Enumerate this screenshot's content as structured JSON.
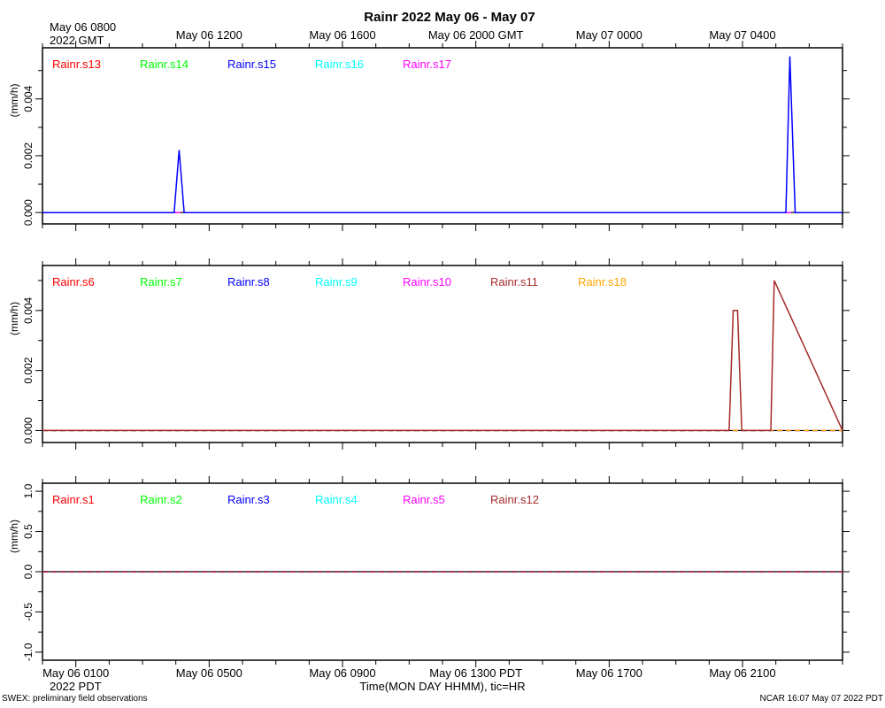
{
  "title": "Rainr 2022 May 06 - May 07",
  "top_axis": {
    "first_label_line1": "May 06 0800",
    "first_label_line2": "2022 GMT",
    "labels": [
      "May 06 1200",
      "May 06 1600",
      "May 06 2000 GMT",
      "May 07 0000",
      "May 07 0400"
    ]
  },
  "bottom_axis": {
    "labels": [
      "May 06 0100",
      "May 06 0500",
      "May 06 0900",
      "May 06 1300 PDT",
      "May 06 1700",
      "May 06 2100"
    ],
    "year_label": "2022 PDT",
    "title": "Time(MON DAY HHMM), tic=HR"
  },
  "footer": {
    "left": "SWEX: preliminary field observations",
    "right": "NCAR 16:07 May 07 2022 PDT"
  },
  "colors": {
    "red": "#ff0000",
    "green": "#00ff00",
    "blue": "#0000ff",
    "cyan": "#00ffff",
    "magenta": "#ff00ff",
    "brown": "#a52a2a",
    "orange": "#ffa500"
  },
  "chart_data": [
    {
      "type": "line",
      "ylabel": "(mm/h)",
      "x_unit": "hours after May 06 0100 PDT",
      "xlim": [
        -1,
        23
      ],
      "ylim": [
        -0.0004,
        0.0058
      ],
      "yticks": [
        "0.000",
        "0.002",
        "0.004"
      ],
      "ytick_values": [
        0,
        0.002,
        0.004
      ],
      "series": [
        {
          "name": "Rainr.s13",
          "color": "#ff0000",
          "x": [
            -1,
            23
          ],
          "y": [
            0,
            0
          ]
        },
        {
          "name": "Rainr.s14",
          "color": "#00ff00",
          "x": [
            -1,
            23
          ],
          "y": [
            0,
            0
          ]
        },
        {
          "name": "Rainr.s15",
          "color": "#0000ff",
          "x": [
            -1,
            2.95,
            3.1,
            3.25,
            21.3,
            21.42,
            21.58,
            23
          ],
          "y": [
            0,
            0,
            0.0022,
            0,
            0,
            0.0055,
            0,
            0
          ]
        },
        {
          "name": "Rainr.s16",
          "color": "#00ffff",
          "x": [
            -1,
            23
          ],
          "y": [
            0,
            0
          ]
        },
        {
          "name": "Rainr.s17",
          "color": "#ff00ff",
          "x": [
            -1,
            23
          ],
          "y": [
            0,
            0
          ]
        }
      ]
    },
    {
      "type": "line",
      "ylabel": "(mm/h)",
      "x_unit": "hours after May 06 0100 PDT",
      "xlim": [
        -1,
        23
      ],
      "ylim": [
        -0.0004,
        0.0055
      ],
      "yticks": [
        "0.000",
        "0.002",
        "0.004"
      ],
      "ytick_values": [
        0,
        0.002,
        0.004
      ],
      "series": [
        {
          "name": "Rainr.s6",
          "color": "#ff0000",
          "x": [
            -1,
            23
          ],
          "y": [
            0,
            0
          ]
        },
        {
          "name": "Rainr.s7",
          "color": "#00ff00",
          "x": [
            -1,
            23
          ],
          "y": [
            0,
            0
          ]
        },
        {
          "name": "Rainr.s8",
          "color": "#0000ff",
          "x": [
            -1,
            23
          ],
          "y": [
            0,
            0
          ]
        },
        {
          "name": "Rainr.s9",
          "color": "#00ffff",
          "x": [
            -1,
            23
          ],
          "y": [
            0,
            0
          ]
        },
        {
          "name": "Rainr.s10",
          "color": "#ff00ff",
          "x": [
            -1,
            23
          ],
          "y": [
            0,
            0
          ]
        },
        {
          "name": "Rainr.s11",
          "color": "#a52a2a",
          "x": [
            -1,
            19.6,
            19.72,
            19.85,
            19.98,
            20.85,
            20.95,
            23
          ],
          "y": [
            0,
            0,
            0.004,
            0.004,
            0,
            0,
            0.005,
            0
          ]
        },
        {
          "name": "Rainr.s18",
          "color": "#ffa500",
          "x": [
            -1,
            23
          ],
          "y": [
            0,
            0
          ]
        }
      ]
    },
    {
      "type": "line",
      "ylabel": "(mm/h)",
      "x_unit": "hours after May 06 0100 PDT",
      "xlim": [
        -1,
        23
      ],
      "ylim": [
        -1.1,
        1.1
      ],
      "yticks": [
        "-1.0",
        "-0.5",
        "0.0",
        "0.5",
        "1.0"
      ],
      "ytick_values": [
        -1,
        -0.5,
        0,
        0.5,
        1
      ],
      "series": [
        {
          "name": "Rainr.s1",
          "color": "#ff0000",
          "x": [
            -1,
            23
          ],
          "y": [
            0,
            0
          ]
        },
        {
          "name": "Rainr.s2",
          "color": "#00ff00",
          "x": [
            -1,
            23
          ],
          "y": [
            0,
            0
          ]
        },
        {
          "name": "Rainr.s3",
          "color": "#0000ff",
          "x": [
            -1,
            23
          ],
          "y": [
            0,
            0
          ]
        },
        {
          "name": "Rainr.s4",
          "color": "#00ffff",
          "x": [
            -1,
            23
          ],
          "y": [
            0,
            0
          ]
        },
        {
          "name": "Rainr.s5",
          "color": "#ff00ff",
          "x": [
            -1,
            23
          ],
          "y": [
            0,
            0
          ]
        },
        {
          "name": "Rainr.s12",
          "color": "#a52a2a",
          "x": [
            -1,
            23
          ],
          "y": [
            0,
            0
          ]
        }
      ]
    }
  ]
}
